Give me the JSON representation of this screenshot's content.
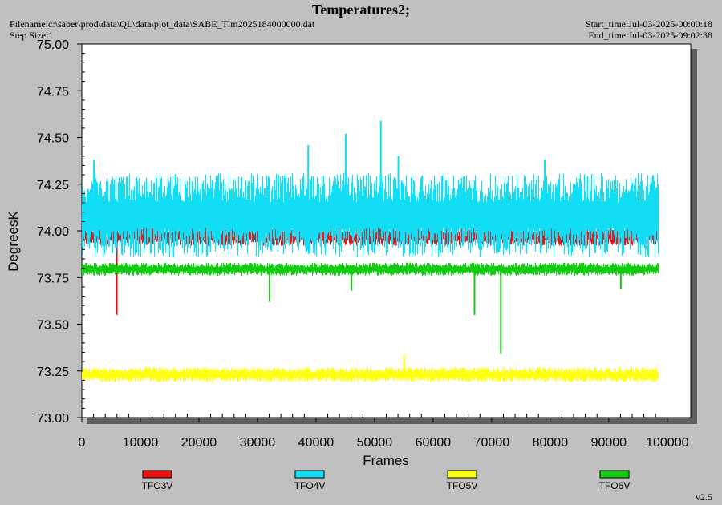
{
  "header": {
    "title": "Temperatures2;",
    "filename": "Filename:c:\\saber\\prod\\data\\QL\\data\\plot_data\\SABE_Tlm2025184000000.dat",
    "step_size": "Step Size:1",
    "start_time": "Start_time:Jul-03-2025-00:00:18",
    "end_time": "End_time:Jul-03-2025-09:02:38",
    "version": "v2.5"
  },
  "chart_data": {
    "type": "line",
    "title": "Temperatures2;",
    "xlabel": "Frames",
    "ylabel": "DegreesK",
    "xlim": [
      0,
      104000
    ],
    "ylim": [
      73.0,
      75.0
    ],
    "x_ticks": [
      "0",
      "10000",
      "20000",
      "30000",
      "40000",
      "50000",
      "60000",
      "70000",
      "80000",
      "90000",
      "100000"
    ],
    "y_ticks": [
      "73.00",
      "73.25",
      "73.50",
      "73.75",
      "74.00",
      "74.25",
      "74.50",
      "74.75",
      "75.00"
    ],
    "grid": false,
    "legend_position": "bottom",
    "x_range_data": [
      0,
      98500
    ],
    "series": [
      {
        "name": "TFO3V",
        "color": "#ee1111",
        "band": [
          73.92,
          74.03
        ],
        "outliers": [
          {
            "x": 5900,
            "y": 73.55
          }
        ]
      },
      {
        "name": "TFO4V",
        "color": "#11ddf5",
        "band": [
          73.86,
          74.31
        ],
        "outliers": [
          {
            "x": 2000,
            "y": 74.38
          },
          {
            "x": 38600,
            "y": 74.46
          },
          {
            "x": 45000,
            "y": 74.52
          },
          {
            "x": 51000,
            "y": 74.59
          },
          {
            "x": 54000,
            "y": 74.4
          },
          {
            "x": 79000,
            "y": 74.38
          }
        ]
      },
      {
        "name": "TFO5V",
        "color": "#ffff11",
        "band": [
          73.19,
          73.27
        ],
        "outliers": [
          {
            "x": 55000,
            "y": 73.34
          }
        ]
      },
      {
        "name": "TFO6V",
        "color": "#11cc11",
        "band": [
          73.76,
          73.83
        ],
        "outliers": [
          {
            "x": 32000,
            "y": 73.62
          },
          {
            "x": 46000,
            "y": 73.68
          },
          {
            "x": 67000,
            "y": 73.55
          },
          {
            "x": 71500,
            "y": 73.34
          },
          {
            "x": 92000,
            "y": 73.69
          }
        ]
      }
    ]
  }
}
